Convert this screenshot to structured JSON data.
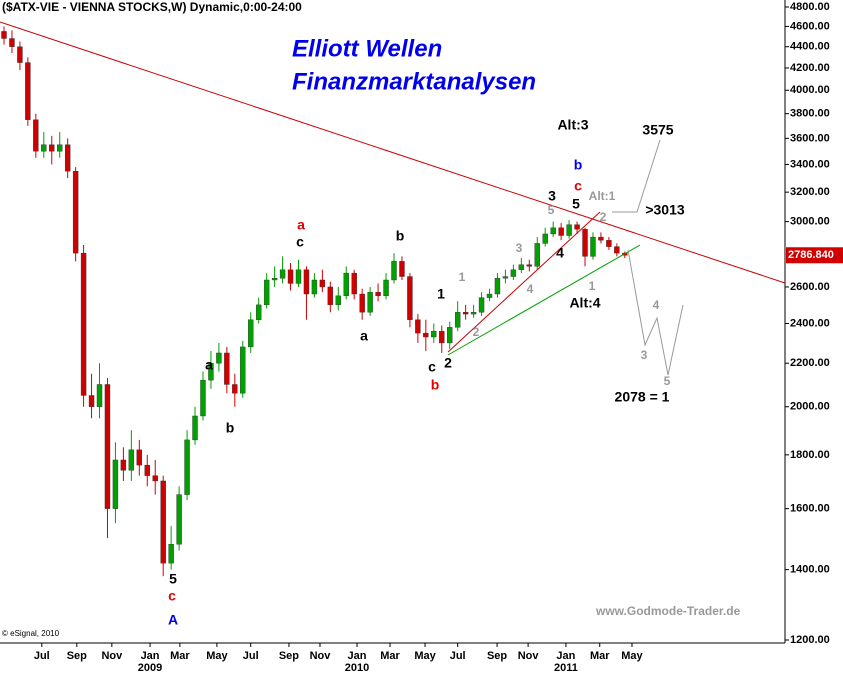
{
  "chart_data": {
    "type": "candlestick",
    "header": "($ATX-VIE - VIENNA STOCKS,W) Dynamic,0:00-24:00",
    "title": "Elliott Wellen",
    "subtitle": "Finanzmarktanalysen",
    "copyright": "© eSignal, 2010",
    "source": "www.Godmode-Trader.de",
    "log_scale": true,
    "up_color": "#00a000",
    "down_color": "#d00000",
    "trendline_color": "#cc0000",
    "x": [
      0,
      2,
      4,
      6,
      8,
      10,
      12,
      14,
      16,
      18,
      20,
      22,
      24,
      26,
      28,
      30,
      32,
      34,
      36,
      38,
      40,
      42,
      44,
      46,
      48,
      50,
      52,
      54,
      56,
      58,
      60,
      62,
      64,
      66,
      68,
      70,
      72,
      74,
      76,
      78,
      80,
      82,
      84,
      86,
      88,
      90,
      92,
      94,
      96,
      98,
      100,
      102,
      104,
      106,
      108,
      110,
      112,
      114,
      116,
      118,
      120,
      122,
      124,
      126,
      128,
      130,
      132,
      134,
      136,
      138,
      140,
      142,
      144,
      146,
      148,
      150,
      152,
      154,
      156
    ],
    "open": [
      4550,
      4480,
      4400,
      4250,
      3750,
      3500,
      3550,
      3500,
      3550,
      3350,
      2800,
      2050,
      2000,
      2100,
      1600,
      1780,
      1740,
      1820,
      1760,
      1720,
      1700,
      1420,
      1480,
      1650,
      1860,
      1960,
      2120,
      2200,
      2250,
      2100,
      2060,
      2280,
      2420,
      2500,
      2640,
      2650,
      2700,
      2620,
      2700,
      2560,
      2640,
      2600,
      2500,
      2550,
      2680,
      2560,
      2460,
      2570,
      2550,
      2640,
      2750,
      2660,
      2420,
      2350,
      2330,
      2360,
      2300,
      2380,
      2460,
      2450,
      2460,
      2540,
      2560,
      2650,
      2660,
      2700,
      2730,
      2720,
      2860,
      2920,
      2960,
      2910,
      2980,
      2950,
      2780,
      2900,
      2880,
      2840,
      2800
    ],
    "high": [
      4600,
      4560,
      4450,
      4300,
      3800,
      3650,
      3620,
      3650,
      3600,
      3380,
      2850,
      2150,
      2200,
      2130,
      1850,
      1830,
      1900,
      1860,
      1800,
      1780,
      1720,
      1540,
      1680,
      1900,
      2000,
      2160,
      2260,
      2300,
      2280,
      2150,
      2310,
      2460,
      2540,
      2680,
      2720,
      2780,
      2740,
      2760,
      2720,
      2680,
      2700,
      2630,
      2600,
      2720,
      2700,
      2590,
      2600,
      2620,
      2680,
      2800,
      2780,
      2680,
      2450,
      2420,
      2400,
      2390,
      2410,
      2520,
      2500,
      2500,
      2570,
      2590,
      2680,
      2700,
      2730,
      2770,
      2760,
      2900,
      2960,
      3000,
      2990,
      3010,
      3000,
      2960,
      2930,
      2930,
      2900,
      2860,
      2810
    ],
    "low": [
      4420,
      4340,
      4180,
      3700,
      3450,
      3450,
      3400,
      3450,
      3300,
      2750,
      2000,
      1950,
      1950,
      1500,
      1550,
      1700,
      1700,
      1720,
      1680,
      1650,
      1380,
      1400,
      1460,
      1630,
      1840,
      1940,
      2080,
      2160,
      2060,
      2000,
      2040,
      2250,
      2400,
      2480,
      2600,
      2620,
      2580,
      2600,
      2420,
      2540,
      2570,
      2460,
      2470,
      2530,
      2530,
      2420,
      2440,
      2520,
      2530,
      2620,
      2640,
      2380,
      2300,
      2260,
      2300,
      2250,
      2270,
      2360,
      2420,
      2430,
      2440,
      2520,
      2540,
      2620,
      2640,
      2680,
      2690,
      2700,
      2840,
      2900,
      2880,
      2890,
      2920,
      2720,
      2760,
      2860,
      2820,
      2780,
      2770
    ],
    "close": [
      4480,
      4400,
      4250,
      3750,
      3500,
      3550,
      3500,
      3550,
      3350,
      2800,
      2050,
      2000,
      2100,
      1600,
      1780,
      1740,
      1820,
      1760,
      1720,
      1700,
      1420,
      1480,
      1650,
      1860,
      1960,
      2120,
      2200,
      2250,
      2100,
      2060,
      2280,
      2420,
      2500,
      2640,
      2650,
      2700,
      2620,
      2700,
      2560,
      2640,
      2600,
      2500,
      2550,
      2680,
      2560,
      2460,
      2570,
      2550,
      2640,
      2750,
      2660,
      2420,
      2350,
      2330,
      2360,
      2300,
      2380,
      2460,
      2450,
      2460,
      2540,
      2560,
      2650,
      2660,
      2700,
      2730,
      2720,
      2860,
      2920,
      2960,
      2910,
      2980,
      2950,
      2780,
      2900,
      2880,
      2840,
      2800,
      2787
    ],
    "last_price": {
      "value": 2786.84,
      "label": "2786.840"
    },
    "xlim": [
      0,
      196
    ],
    "xticks": [
      {
        "value": 9.5,
        "label": "Jul"
      },
      {
        "value": 18.3,
        "label": "Sep"
      },
      {
        "value": 27.1,
        "label": "Nov"
      },
      {
        "value": 36.7,
        "label": "Jan"
      },
      {
        "value": 44.2,
        "label": "Mar"
      },
      {
        "value": 53.5,
        "label": "May"
      },
      {
        "value": 62,
        "label": "Jul"
      },
      {
        "value": 71.6,
        "label": "Sep"
      },
      {
        "value": 79.4,
        "label": "Nov"
      },
      {
        "value": 88.7,
        "label": "Jan"
      },
      {
        "value": 97,
        "label": "Mar"
      },
      {
        "value": 105.8,
        "label": "May"
      },
      {
        "value": 114,
        "label": "Jul"
      },
      {
        "value": 123.9,
        "label": "Sep"
      },
      {
        "value": 131.7,
        "label": "Nov"
      },
      {
        "value": 141.2,
        "label": "Jan"
      },
      {
        "value": 149.7,
        "label": "Mar"
      },
      {
        "value": 157.8,
        "label": "May"
      }
    ],
    "year_labels": [
      {
        "value": 36.7,
        "label": "2009"
      },
      {
        "value": 88.7,
        "label": "2010"
      },
      {
        "value": 141.2,
        "label": "2011"
      }
    ],
    "ylim": [
      1200,
      4800
    ],
    "yticks": [
      {
        "value": 4800,
        "label": "4800.00"
      },
      {
        "value": 4600,
        "label": "4600.00"
      },
      {
        "value": 4400,
        "label": "4400.00"
      },
      {
        "value": 4200,
        "label": "4200.00"
      },
      {
        "value": 4000,
        "label": "4000.00"
      },
      {
        "value": 3800,
        "label": "3800.00"
      },
      {
        "value": 3600,
        "label": "3600.00"
      },
      {
        "value": 3400,
        "label": "3400.00"
      },
      {
        "value": 3200,
        "label": "3200.00"
      },
      {
        "value": 3000,
        "label": "3000.00"
      },
      {
        "value": 2600,
        "label": "2600.00"
      },
      {
        "value": 2400,
        "label": "2400.00"
      },
      {
        "value": 2200,
        "label": "2200.00"
      },
      {
        "value": 2000,
        "label": "2000.00"
      },
      {
        "value": 1800,
        "label": "1800.00"
      },
      {
        "value": 1600,
        "label": "1600.00"
      },
      {
        "value": 1400,
        "label": "1400.00"
      },
      {
        "value": 1200,
        "label": "1200.00"
      }
    ],
    "annotations": [
      "a",
      "c",
      "b",
      "a",
      "1",
      "c",
      "b",
      "2",
      "3",
      "5",
      "4",
      "b",
      "c",
      "Alt:1",
      "Alt:3",
      "3575",
      ">3013",
      "Alt:4",
      "2078 = 1",
      "1",
      "2",
      "3",
      "4",
      "5",
      "1",
      "2",
      "3",
      "4",
      "5",
      "a",
      "b",
      "5",
      "c",
      "A"
    ]
  }
}
